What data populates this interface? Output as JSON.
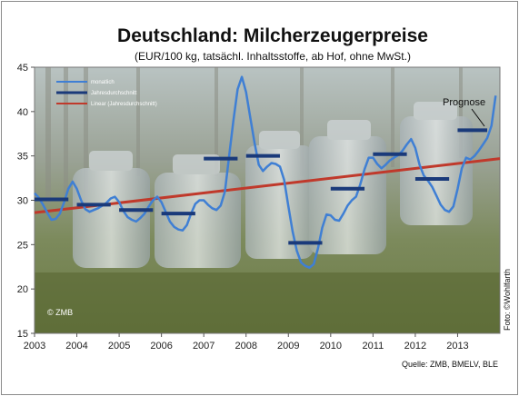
{
  "chart_data": {
    "type": "line",
    "title": "Deutschland: Milcherzeugerpreise",
    "subtitle": "(EUR/100 kg, tatsächl. Inhaltsstoffe, ab Hof, ohne MwSt.)",
    "xlabel": "",
    "ylabel": "",
    "ylim": [
      15,
      45
    ],
    "y_ticks": [
      15,
      20,
      25,
      30,
      35,
      40,
      45
    ],
    "xlim": [
      2003,
      2014
    ],
    "x_tick_labels": [
      "2003",
      "2004",
      "2005",
      "2006",
      "2007",
      "2008",
      "2009",
      "2010",
      "2011",
      "2012",
      "2013"
    ],
    "grid": false,
    "legend_position": "top-left",
    "series": [
      {
        "name": "monatlich",
        "color": "#3f7fd4",
        "x": [
          2003.0,
          2003.1,
          2003.2,
          2003.3,
          2003.4,
          2003.5,
          2003.6,
          2003.7,
          2003.8,
          2003.9,
          2004.0,
          2004.1,
          2004.2,
          2004.3,
          2004.4,
          2004.5,
          2004.6,
          2004.7,
          2004.8,
          2004.9,
          2005.0,
          2005.1,
          2005.2,
          2005.3,
          2005.4,
          2005.5,
          2005.6,
          2005.7,
          2005.8,
          2005.9,
          2006.0,
          2006.1,
          2006.2,
          2006.3,
          2006.4,
          2006.5,
          2006.6,
          2006.7,
          2006.8,
          2006.9,
          2007.0,
          2007.1,
          2007.2,
          2007.3,
          2007.4,
          2007.5,
          2007.6,
          2007.7,
          2007.8,
          2007.9,
          2008.0,
          2008.1,
          2008.2,
          2008.3,
          2008.4,
          2008.5,
          2008.6,
          2008.7,
          2008.8,
          2008.9,
          2009.0,
          2009.1,
          2009.2,
          2009.3,
          2009.4,
          2009.5,
          2009.6,
          2009.7,
          2009.8,
          2009.9,
          2010.0,
          2010.1,
          2010.2,
          2010.3,
          2010.4,
          2010.5,
          2010.6,
          2010.7,
          2010.8,
          2010.9,
          2011.0,
          2011.1,
          2011.2,
          2011.3,
          2011.4,
          2011.5,
          2011.6,
          2011.7,
          2011.8,
          2011.9,
          2012.0,
          2012.1,
          2012.2,
          2012.3,
          2012.4,
          2012.5,
          2012.6,
          2012.7,
          2012.8,
          2012.9,
          2013.0,
          2013.1,
          2013.2,
          2013.3,
          2013.4,
          2013.5,
          2013.6,
          2013.7,
          2013.8,
          2013.9
        ],
        "values": [
          30.8,
          30.3,
          29.5,
          28.6,
          27.8,
          27.9,
          28.5,
          29.8,
          31.3,
          32.1,
          31.3,
          30.0,
          29.0,
          28.7,
          28.9,
          29.1,
          29.4,
          29.7,
          30.2,
          30.4,
          29.8,
          28.8,
          28.1,
          27.8,
          27.6,
          28.0,
          28.5,
          29.3,
          30.0,
          30.4,
          29.8,
          28.7,
          27.6,
          27.0,
          26.7,
          26.6,
          27.2,
          28.5,
          29.6,
          30.0,
          30.0,
          29.5,
          29.1,
          28.9,
          29.4,
          31.0,
          35.0,
          39.0,
          42.5,
          43.9,
          42.2,
          39.3,
          36.5,
          34.0,
          33.3,
          33.8,
          34.2,
          34.1,
          33.8,
          32.3,
          29.3,
          26.5,
          24.3,
          23.0,
          22.6,
          22.4,
          22.8,
          24.6,
          26.9,
          28.4,
          28.3,
          27.8,
          27.7,
          28.5,
          29.4,
          30.0,
          30.4,
          31.8,
          33.5,
          34.8,
          34.8,
          34.1,
          33.6,
          34.0,
          34.5,
          34.8,
          35.1,
          35.6,
          36.3,
          36.9,
          35.9,
          34.0,
          32.8,
          32.2,
          31.5,
          30.5,
          29.5,
          28.9,
          28.7,
          29.3,
          31.3,
          33.6,
          34.8,
          34.6,
          35.0,
          35.6,
          36.3,
          37.0,
          38.4,
          41.8
        ]
      },
      {
        "name": "Jahresdurchschnitt",
        "color": "#1a3a7a",
        "x_start": [
          2003.0,
          2004.0,
          2005.0,
          2006.0,
          2007.0,
          2008.0,
          2009.0,
          2010.0,
          2011.0,
          2012.0,
          2013.0
        ],
        "x_end": [
          2003.8,
          2004.8,
          2005.8,
          2006.8,
          2007.8,
          2008.8,
          2009.8,
          2010.8,
          2011.8,
          2012.8,
          2013.7
        ],
        "values": [
          30.1,
          29.5,
          28.9,
          28.5,
          34.7,
          35.0,
          25.2,
          31.3,
          35.2,
          32.4,
          37.9
        ]
      },
      {
        "name": "Linear (Jahresdurchschnitt)",
        "color": "#c0392b",
        "x": [
          2003.0,
          2014.0
        ],
        "values": [
          28.6,
          34.7
        ]
      }
    ],
    "annotations": {
      "prognose": "Prognose",
      "copyright": "© ZMB",
      "foto": "Foto: ©Wohlfarth",
      "source": "Quelle: ZMB, BMELV, BLE"
    }
  },
  "colors": {
    "plot_bg_top": "#b7c1c4",
    "plot_bg_bottom": "#6f7e4c",
    "frame": "#777777"
  }
}
